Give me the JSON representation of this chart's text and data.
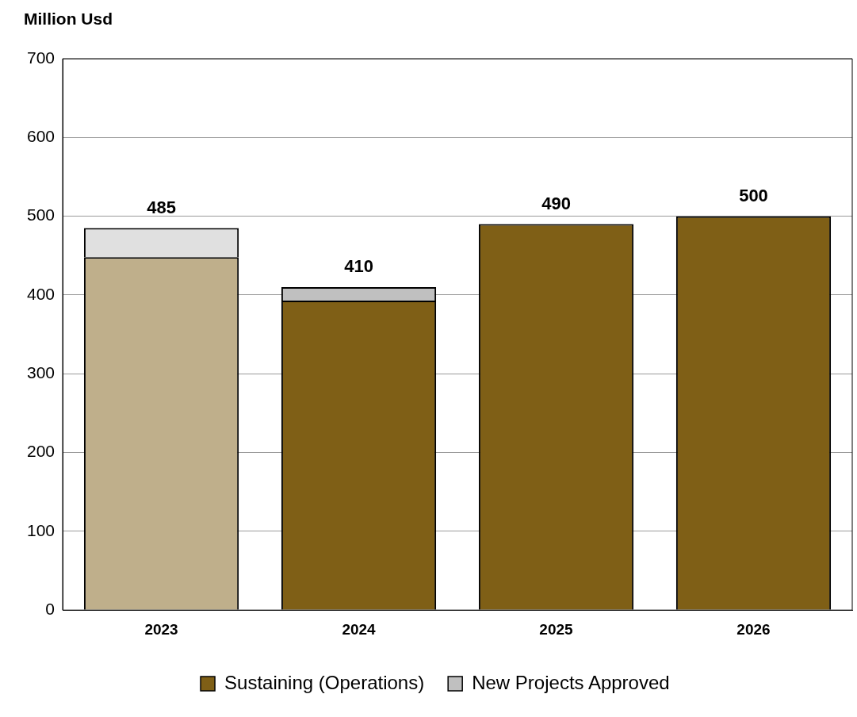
{
  "chart_data": {
    "type": "bar",
    "ylabel": "Million Usd",
    "categories": [
      "2023",
      "2024",
      "2025",
      "2026"
    ],
    "stacked": true,
    "series": [
      {
        "name": "Sustaining (Operations)",
        "color": "#7f5f16",
        "colors": [
          "#bfaf8b",
          "#7f5f16",
          "#7f5f16",
          "#7f5f16"
        ],
        "values": [
          448,
          393,
          490,
          500
        ]
      },
      {
        "name": "New Projects Approved",
        "color": "#c0c0c0",
        "colors": [
          "#e0e0e0",
          "#c0c0c0",
          "#c0c0c0",
          "#c0c0c0"
        ],
        "values": [
          37,
          17,
          null,
          null
        ]
      }
    ],
    "totals": [
      "485",
      "410",
      "490",
      "500"
    ],
    "ylim": [
      0,
      700
    ],
    "yticks": [
      0,
      100,
      200,
      300,
      400,
      500,
      600,
      700
    ],
    "grid": "y",
    "legend": "bottom"
  }
}
